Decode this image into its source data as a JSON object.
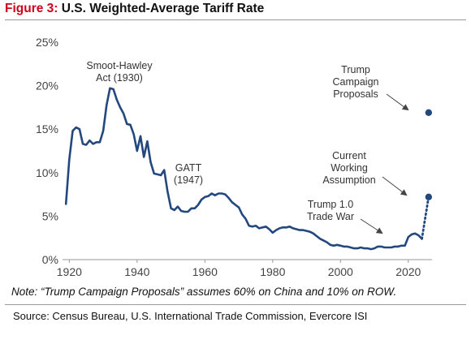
{
  "figure": {
    "label": "Figure 3:",
    "title": "U.S. Weighted-Average Tariff Rate"
  },
  "note": "Note: “Trump Campaign Proposals” assumes 60% on China and 10% on ROW.",
  "source": "Source: Census Bureau, U.S. International Trade Commission, Evercore ISI",
  "colors": {
    "line": "#23487e",
    "title_label": "#d0021b",
    "axis": "#9a9a9a"
  },
  "chart_data": {
    "type": "line",
    "title": "U.S. Weighted-Average Tariff Rate",
    "xlabel": "",
    "ylabel": "",
    "xlim": [
      1918,
      2027
    ],
    "ylim": [
      0,
      25
    ],
    "grid": false,
    "legend": "none",
    "x_ticks": [
      1920,
      1940,
      1960,
      1980,
      2000,
      2020
    ],
    "y_ticks": [
      {
        "value": 0,
        "label": "0%"
      },
      {
        "value": 5,
        "label": "5%"
      },
      {
        "value": 10,
        "label": "10%"
      },
      {
        "value": 15,
        "label": "15%"
      },
      {
        "value": 20,
        "label": "20%"
      },
      {
        "value": 25,
        "label": "25%"
      }
    ],
    "series": [
      {
        "style": "solid",
        "x": [
          1919,
          1920,
          1921,
          1922,
          1923,
          1924,
          1925,
          1926,
          1927,
          1928,
          1929,
          1930,
          1931,
          1932,
          1933,
          1934,
          1935,
          1936,
          1937,
          1938,
          1939,
          1940,
          1941,
          1942,
          1943,
          1944,
          1945,
          1946,
          1947,
          1948,
          1949,
          1950,
          1951,
          1952,
          1953,
          1954,
          1955,
          1956,
          1957,
          1958,
          1959,
          1960,
          1961,
          1962,
          1963,
          1964,
          1965,
          1966,
          1967,
          1968,
          1969,
          1970,
          1971,
          1972,
          1973,
          1974,
          1975,
          1976,
          1977,
          1978,
          1979,
          1980,
          1981,
          1982,
          1983,
          1984,
          1985,
          1986,
          1987,
          1988,
          1989,
          1990,
          1991,
          1992,
          1993,
          1994,
          1995,
          1996,
          1997,
          1998,
          1999,
          2000,
          2001,
          2002,
          2003,
          2004,
          2005,
          2006,
          2007,
          2008,
          2009,
          2010,
          2011,
          2012,
          2013,
          2014,
          2015,
          2016,
          2017,
          2018,
          2019,
          2020,
          2021,
          2022,
          2023,
          2024
        ],
        "y": [
          6.4,
          11.5,
          14.8,
          15.2,
          15.0,
          13.3,
          13.2,
          13.7,
          13.3,
          13.5,
          13.5,
          14.8,
          17.8,
          19.7,
          19.6,
          18.4,
          17.5,
          16.8,
          15.6,
          15.5,
          14.4,
          12.5,
          14.2,
          11.8,
          13.6,
          11.2,
          9.9,
          9.8,
          9.7,
          10.3,
          7.8,
          5.9,
          5.7,
          6.1,
          5.6,
          5.5,
          5.5,
          5.9,
          5.9,
          6.3,
          6.9,
          7.2,
          7.3,
          7.6,
          7.4,
          7.6,
          7.6,
          7.5,
          7.1,
          6.6,
          6.3,
          6.0,
          5.2,
          4.7,
          3.9,
          3.8,
          3.9,
          3.6,
          3.7,
          3.8,
          3.5,
          3.1,
          3.4,
          3.6,
          3.7,
          3.7,
          3.8,
          3.6,
          3.5,
          3.4,
          3.4,
          3.3,
          3.2,
          3.0,
          2.7,
          2.4,
          2.2,
          2.0,
          1.7,
          1.6,
          1.7,
          1.6,
          1.5,
          1.5,
          1.4,
          1.3,
          1.3,
          1.4,
          1.3,
          1.3,
          1.2,
          1.3,
          1.5,
          1.5,
          1.4,
          1.4,
          1.4,
          1.5,
          1.5,
          1.6,
          1.6,
          2.6,
          2.9,
          3.0,
          2.8,
          2.4
        ]
      },
      {
        "style": "dotted",
        "x": [
          2024,
          2026
        ],
        "y": [
          2.4,
          7.2
        ]
      }
    ],
    "points": [
      {
        "x": 2026,
        "y": 16.9
      },
      {
        "x": 2026,
        "y": 7.2
      }
    ],
    "annotations": [
      {
        "lines": [
          "Smoot-Hawley",
          "Act (1930)"
        ]
      },
      {
        "lines": [
          "GATT",
          "(1947)"
        ]
      },
      {
        "lines": [
          "Trump",
          "Campaign",
          "Proposals"
        ]
      },
      {
        "lines": [
          "Current",
          "Working",
          "Assumption"
        ]
      },
      {
        "lines": [
          "Trump 1.0",
          "Trade War"
        ]
      }
    ]
  }
}
